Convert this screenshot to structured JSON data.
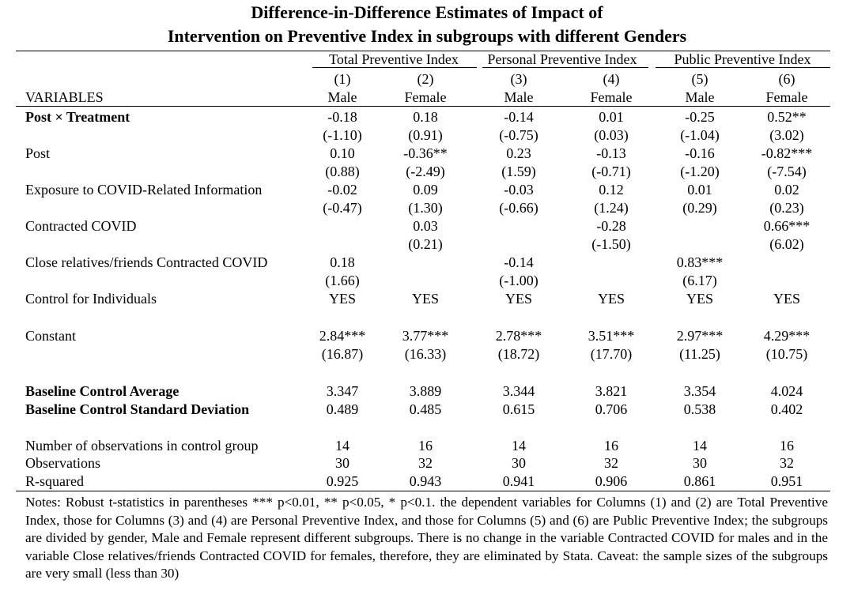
{
  "title": {
    "line1": "Difference-in-Difference Estimates of Impact of",
    "line2": "Intervention on Preventive Index in subgroups with different Genders"
  },
  "groups": [
    {
      "label": "Total Preventive Index"
    },
    {
      "label": "Personal Preventive Index"
    },
    {
      "label": "Public Preventive Index"
    }
  ],
  "columns": [
    {
      "num": "(1)",
      "gender": "Male"
    },
    {
      "num": "(2)",
      "gender": "Female"
    },
    {
      "num": "(3)",
      "gender": "Male"
    },
    {
      "num": "(4)",
      "gender": "Female"
    },
    {
      "num": "(5)",
      "gender": "Male"
    },
    {
      "num": "(6)",
      "gender": "Female"
    }
  ],
  "variables_header": "VARIABLES",
  "rows": [
    {
      "label": "Post × Treatment",
      "bold": true,
      "coef": [
        "-0.18",
        "0.18",
        "-0.14",
        "0.01",
        "-0.25",
        "0.52**"
      ],
      "tstat": [
        "(-1.10)",
        "(0.91)",
        "(-0.75)",
        "(0.03)",
        "(-1.04)",
        "(3.02)"
      ]
    },
    {
      "label": "Post",
      "coef": [
        "0.10",
        "-0.36**",
        "0.23",
        "-0.13",
        "-0.16",
        "-0.82***"
      ],
      "tstat": [
        "(0.88)",
        "(-2.49)",
        "(1.59)",
        "(-0.71)",
        "(-1.20)",
        "(-7.54)"
      ]
    },
    {
      "label": "Exposure to COVID-Related Information",
      "coef": [
        "-0.02",
        "0.09",
        "-0.03",
        "0.12",
        "0.01",
        "0.02"
      ],
      "tstat": [
        "(-0.47)",
        "(1.30)",
        "(-0.66)",
        "(1.24)",
        "(0.29)",
        "(0.23)"
      ]
    },
    {
      "label": "Contracted COVID",
      "coef": [
        "",
        "0.03",
        "",
        "-0.28",
        "",
        "0.66***"
      ],
      "tstat": [
        "",
        "(0.21)",
        "",
        "(-1.50)",
        "",
        "(6.02)"
      ]
    },
    {
      "label": "Close relatives/friends Contracted COVID",
      "coef": [
        "0.18",
        "",
        "-0.14",
        "",
        "0.83***",
        ""
      ],
      "tstat": [
        "(1.66)",
        "",
        "(-1.00)",
        "",
        "(6.17)",
        ""
      ]
    },
    {
      "label": "Control for Individuals",
      "coef": [
        "YES",
        "YES",
        "YES",
        "YES",
        "YES",
        "YES"
      ]
    },
    {
      "label": "Constant",
      "coef": [
        "2.84***",
        "3.77***",
        "2.78***",
        "3.51***",
        "2.97***",
        "4.29***"
      ],
      "tstat": [
        "(16.87)",
        "(16.33)",
        "(18.72)",
        "(17.70)",
        "(11.25)",
        "(10.75)"
      ]
    },
    {
      "label": "Baseline Control Average",
      "bold": true,
      "coef": [
        "3.347",
        "3.889",
        "3.344",
        "3.821",
        "3.354",
        "4.024"
      ]
    },
    {
      "label": "Baseline Control Standard Deviation",
      "bold": true,
      "coef": [
        "0.489",
        "0.485",
        "0.615",
        "0.706",
        "0.538",
        "0.402"
      ]
    },
    {
      "label": "Number of observations in control group",
      "coef": [
        "14",
        "16",
        "14",
        "16",
        "14",
        "16"
      ]
    },
    {
      "label": "Observations",
      "coef": [
        "30",
        "32",
        "30",
        "32",
        "30",
        "32"
      ]
    },
    {
      "label": "R-squared",
      "coef": [
        "0.925",
        "0.943",
        "0.941",
        "0.906",
        "0.861",
        "0.951"
      ]
    }
  ],
  "notes": "Notes: Robust t-statistics in parentheses *** p<0.01, ** p<0.05, * p<0.1. the dependent variables for Columns (1) and (2) are Total Preventive Index, those for Columns (3) and (4) are Personal Preventive Index, and those for Columns (5) and (6) are Public Preventive Index; the subgroups are divided by gender, Male and Female represent different subgroups. There is no change in the variable Contracted COVID for males and in the variable Close relatives/friends Contracted COVID for females, therefore, they are eliminated by Stata. Caveat: the sample sizes of the subgroups are very small (less than 30)"
}
